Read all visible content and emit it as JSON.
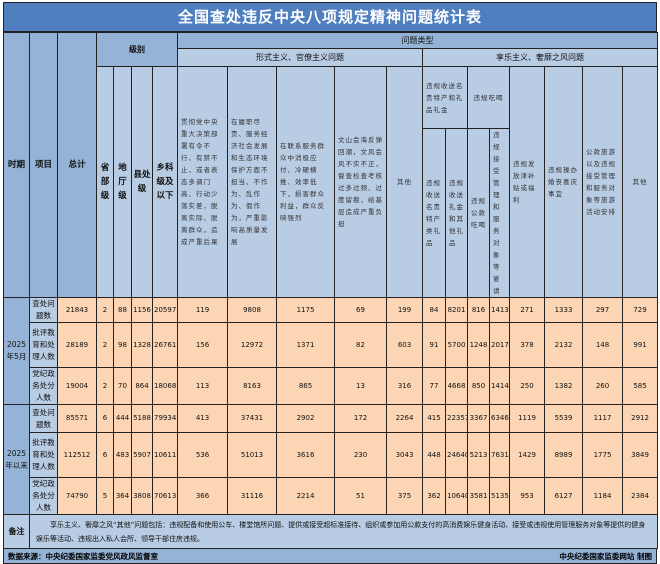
{
  "title": "全国查处违反中央八项规定精神问题统计表",
  "header": {
    "period": "时期",
    "item": "项目",
    "total": "总计",
    "level_group": "级别",
    "levels": [
      "省部级",
      "地厅级",
      "县处级",
      "乡科级及以下"
    ],
    "problem_type": "问题类型",
    "formalism_group": "形式主义、官僚主义问题",
    "formalism_cols": [
      "贯彻党中央重大决策部署有令不行、有禁不止，或者表态多调门高、行动少落实差，脱离实际、脱离群众，造成严重后果",
      "在履职尽责、服务经济社会发展和生态环境保护方面不担当、不作为、乱作为、假作为，严重影响高质量发展",
      "在联系服务群众中消极应付、冷硬横推、效率低下，损害群众利益，群众反映强烈",
      "文山会海反弹回潮，文风会风不实不正，督查检查考核过多过频、过度留痕，给基层造成严重负担",
      "其他"
    ],
    "hedonism_group": "享乐主义、奢靡之风问题",
    "gift_group": "违规收送名贵特产和礼品礼金",
    "gift_cols": [
      "违规收送名贵特产类礼品",
      "违规收送礼金和其他礼品"
    ],
    "dining_group": "违规吃喝",
    "dining_cols": [
      "违规公款吃喝",
      "违规接受管理和服务对象等宴请"
    ],
    "hedonism_cols": [
      "违规发放津补贴或福利",
      "违规操办婚丧喜庆事宜",
      "公款旅游以及违规接受管理和服务对象等旅游活动安排",
      "其他"
    ]
  },
  "periods": [
    "2025年5月",
    "2025年以来"
  ],
  "rows": [
    {
      "item": "查处问题数",
      "values": [
        "21843",
        "2",
        "88",
        "1156",
        "20597",
        "119",
        "9808",
        "1175",
        "69",
        "199",
        "84",
        "8201",
        "816",
        "1413",
        "271",
        "1333",
        "297",
        "729"
      ]
    },
    {
      "item": "批评教育和处理人数",
      "values": [
        "28189",
        "2",
        "98",
        "1328",
        "26761",
        "156",
        "12972",
        "1371",
        "82",
        "603",
        "91",
        "5700",
        "1248",
        "2017",
        "378",
        "2132",
        "148",
        "991"
      ]
    },
    {
      "item": "党纪政务处分人数",
      "values": [
        "19004",
        "2",
        "70",
        "864",
        "18068",
        "113",
        "8163",
        "865",
        "13",
        "316",
        "77",
        "4668",
        "850",
        "1414",
        "250",
        "1382",
        "260",
        "585"
      ]
    },
    {
      "item": "查处问题数",
      "values": [
        "85571",
        "6",
        "444",
        "5188",
        "79934",
        "413",
        "37431",
        "2902",
        "172",
        "2264",
        "415",
        "22357",
        "3367",
        "6346",
        "1119",
        "5539",
        "1117",
        "2912"
      ]
    },
    {
      "item": "批评教育和处理人数",
      "values": [
        "112512",
        "6",
        "483",
        "5907",
        "106117",
        "536",
        "51013",
        "3616",
        "230",
        "3043",
        "448",
        "24640",
        "5213",
        "7631",
        "1429",
        "8989",
        "1775",
        "3849"
      ]
    },
    {
      "item": "党纪政务处分人数",
      "values": [
        "74790",
        "5",
        "364",
        "3808",
        "70613",
        "366",
        "31116",
        "2214",
        "51",
        "375",
        "362",
        "10640",
        "3581",
        "5135",
        "953",
        "6127",
        "1184",
        "2384"
      ]
    }
  ],
  "note": {
    "label": "备注",
    "text": "享乐主义、奢靡之风“其他”问题包括：违规配备和使用公车、楼堂馆所问题、提供或接受超标准接待、组织或参加用公款支付的高消费娱乐健身活动、接受或违规使用管理服务对象等提供的健身娱乐等活动、违规出入私人会所、领导干部住房违规。"
  },
  "footer": {
    "source": "数据来源：中央纪委国家监委党风政风监督室",
    "credit": "中央纪委国家监委网站 制图"
  },
  "colors": {
    "title_bg": "#4f7fbf",
    "header_bg": "#b8cce4",
    "header_dark": "#95b3d7",
    "value_bg": "#fcd5b4"
  }
}
